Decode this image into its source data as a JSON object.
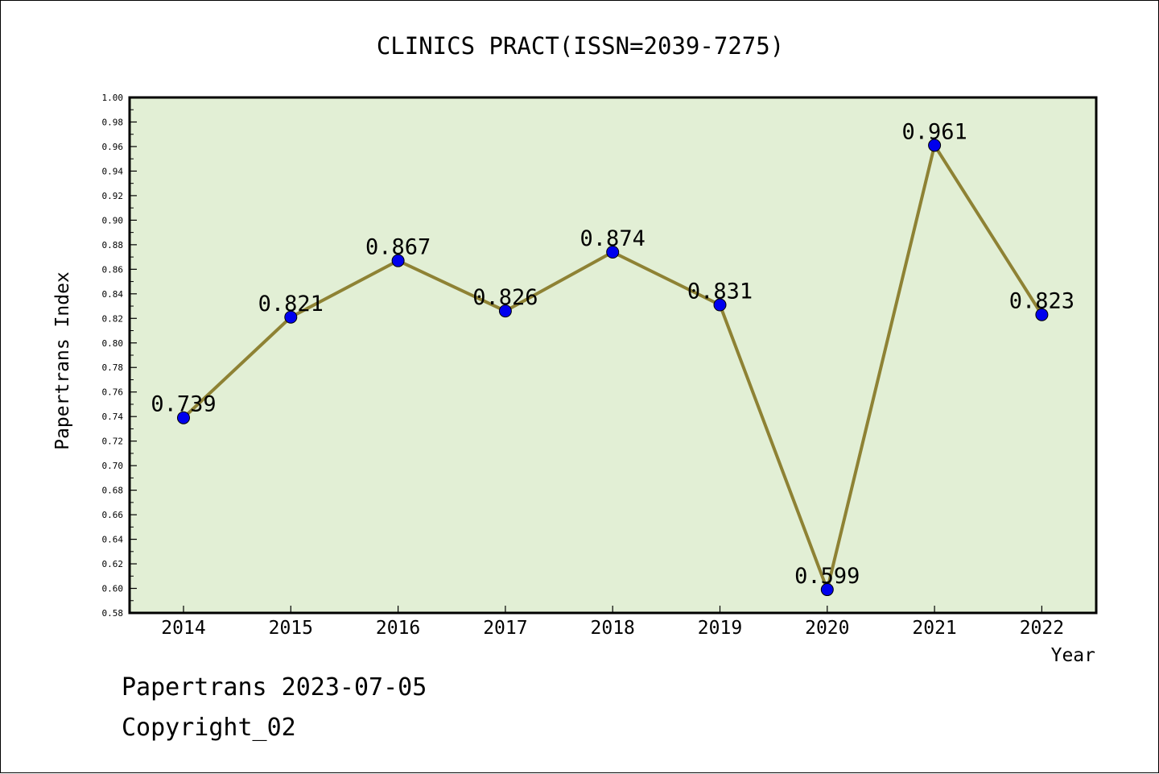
{
  "chart_data": {
    "type": "line",
    "title": "CLINICS PRACT(ISSN=2039-7275)",
    "xlabel": "Year",
    "ylabel": "Papertrans Index",
    "categories": [
      "2014",
      "2015",
      "2016",
      "2017",
      "2018",
      "2019",
      "2020",
      "2021",
      "2022"
    ],
    "series": [
      {
        "values": [
          0.739,
          0.821,
          0.867,
          0.826,
          0.874,
          0.831,
          0.599,
          0.961,
          0.823
        ],
        "data_labels": [
          "0.739",
          "0.821",
          "0.867",
          "0.826",
          "0.874",
          "0.831",
          "0.599",
          "0.961",
          "0.823"
        ]
      }
    ],
    "ylim": [
      0.58,
      1.0
    ],
    "yticks": [
      "0.58",
      "0.60",
      "0.62",
      "0.64",
      "0.66",
      "0.68",
      "0.70",
      "0.72",
      "0.74",
      "0.76",
      "0.78",
      "0.80",
      "0.82",
      "0.84",
      "0.86",
      "0.88",
      "0.90",
      "0.92",
      "0.94",
      "0.96",
      "0.98",
      "1.00"
    ],
    "grid": false,
    "colors": {
      "plot_background": "#e2efd5",
      "line": "#8e8234",
      "marker": "#0000ee",
      "frame": "#000000"
    }
  },
  "footer": {
    "line1": "Papertrans 2023-07-05",
    "line2": "Copyright_02"
  }
}
